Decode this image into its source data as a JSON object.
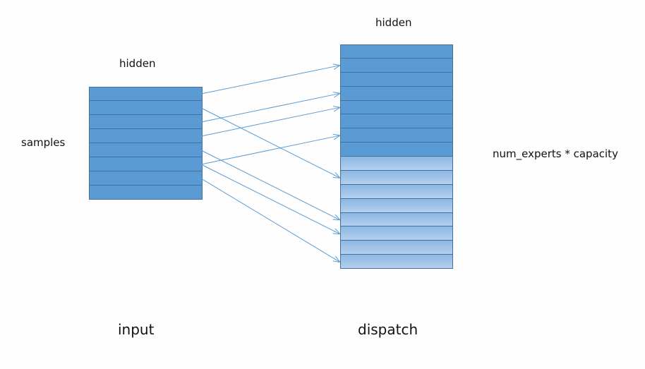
{
  "labels": {
    "input_hidden": "hidden",
    "samples": "samples",
    "dispatch_hidden": "hidden",
    "num_experts": "num_experts * capacity",
    "input": "input",
    "dispatch": "dispatch"
  },
  "input_rows": 8,
  "dispatch_rows": 16,
  "dispatch_filled_rows": 8,
  "mapping": [
    {
      "from": 0,
      "to": 1
    },
    {
      "from": 1,
      "to": 9
    },
    {
      "from": 2,
      "to": 3
    },
    {
      "from": 3,
      "to": 4
    },
    {
      "from": 4,
      "to": 12
    },
    {
      "from": 5,
      "to": 13
    },
    {
      "from": 5,
      "to": 6
    },
    {
      "from": 6,
      "to": 15
    }
  ],
  "colors": {
    "filled": "#5b9bd5",
    "empty": "#a9c8ea",
    "border": "#41719c",
    "arrow": "#5b9bd5"
  }
}
